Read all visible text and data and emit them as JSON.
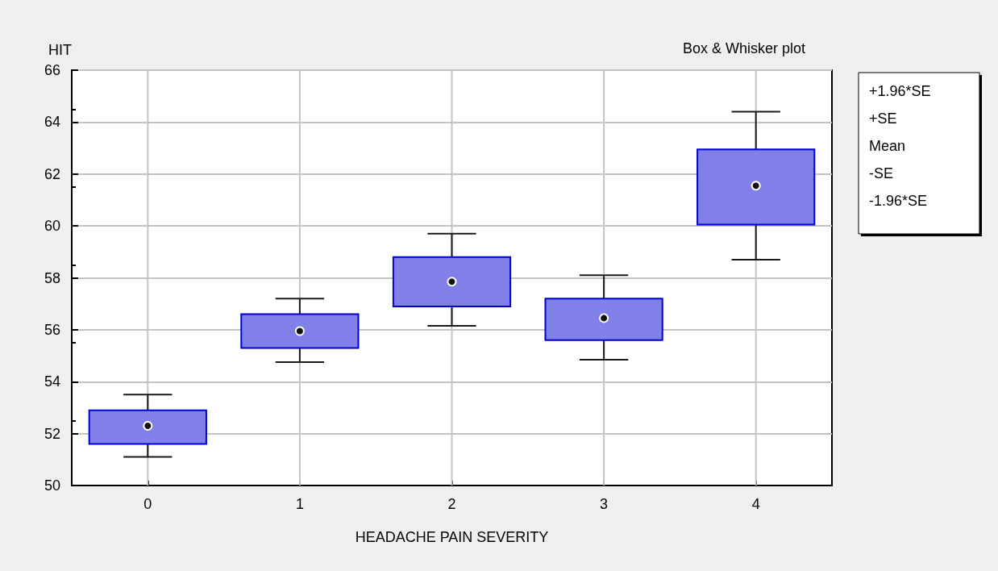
{
  "chart_data": {
    "type": "box",
    "title": "Box & Whisker plot",
    "xlabel": "HEADACHE PAIN SEVERITY",
    "ylabel": "HIT",
    "categories": [
      "0",
      "1",
      "2",
      "3",
      "4"
    ],
    "series": [
      {
        "color": "#8080e8",
        "boxes": [
          {
            "low": 51.1,
            "q1": 51.6,
            "median": 52.3,
            "q3": 52.9,
            "high": 53.5
          },
          {
            "low": 54.75,
            "q1": 55.3,
            "median": 55.95,
            "q3": 56.6,
            "high": 57.2
          },
          {
            "low": 56.15,
            "q1": 56.9,
            "median": 57.85,
            "q3": 58.8,
            "high": 59.7
          },
          {
            "low": 54.85,
            "q1": 55.6,
            "median": 56.45,
            "q3": 57.2,
            "high": 58.1
          },
          {
            "low": 58.7,
            "q1": 60.05,
            "median": 61.55,
            "q3": 62.95,
            "high": 64.4
          }
        ]
      }
    ],
    "ylim": [
      50,
      66
    ],
    "yticks": [
      50,
      52,
      54,
      56,
      58,
      60,
      62,
      64,
      66
    ],
    "grid": true,
    "marker": "circle",
    "annotations": [
      "+1.96*SE",
      "+SE",
      "Mean",
      "-SE",
      "-1.96*SE"
    ]
  }
}
